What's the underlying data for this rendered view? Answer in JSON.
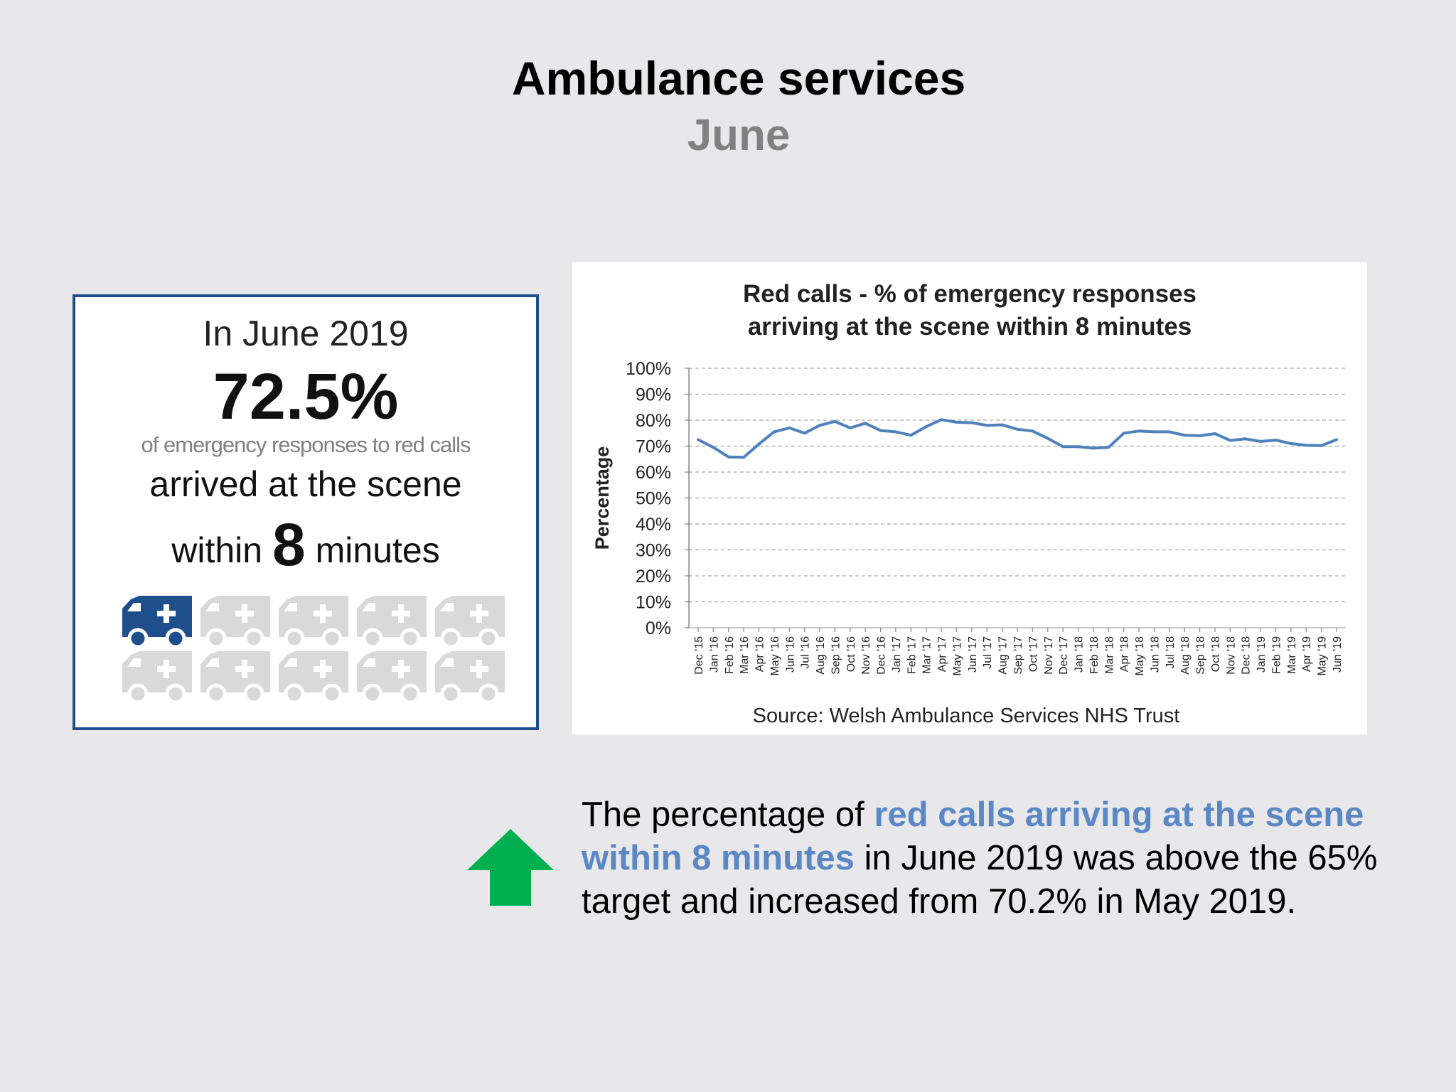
{
  "page": {
    "title": "Ambulance services",
    "subtitle": "June"
  },
  "info_box": {
    "line1": "In June 2019",
    "big_value": "72.5%",
    "small_text": "of emergency responses to red calls",
    "line2": "arrived at the scene",
    "line3_pre": "within",
    "line3_num": "8",
    "line3_post": "minutes",
    "icon_name": "ambulance-icon",
    "icons_total": 10,
    "filled_fraction": 0.725,
    "colors": {
      "filled": "#1f4e8c",
      "empty": "#d9d9d9",
      "border": "#1f4e8c"
    }
  },
  "chart_data": {
    "type": "line",
    "title_lines": [
      "Red calls - % of emergency responses",
      "arriving at the scene within 8 minutes"
    ],
    "ylabel": "Percentage",
    "xlabel": "",
    "ylim": [
      0,
      100
    ],
    "yticks": [
      0,
      10,
      20,
      30,
      40,
      50,
      60,
      70,
      80,
      90,
      100
    ],
    "ytick_suffix": "%",
    "grid": "horizontal dashed",
    "source": "Source:  Welsh Ambulance  Services NHS Trust",
    "categories": [
      "Dec '15",
      "Jan '16",
      "Feb '16",
      "Mar '16",
      "Apr '16",
      "May '16",
      "Jun '16",
      "Jul '16",
      "Aug '16",
      "Sep '16",
      "Oct '16",
      "Nov '16",
      "Dec '16",
      "Jan '17",
      "Feb '17",
      "Mar '17",
      "Apr '17",
      "May '17",
      "Jun '17",
      "Jul '17",
      "Aug '17",
      "Sep '17",
      "Oct '17",
      "Nov '17",
      "Dec '17",
      "Jan '18",
      "Feb '18",
      "Mar '18",
      "Apr '18",
      "May '18",
      "Jun '18",
      "Jul '18",
      "Aug '18",
      "Sep '18",
      "Oct '18",
      "Nov '18",
      "Dec '18",
      "Jan '19",
      "Feb '19",
      "Mar '19",
      "Apr '19",
      "May '19",
      "Jun '19"
    ],
    "series": [
      {
        "color": "#4f81bd",
        "values": [
          72.5,
          69.5,
          65.8,
          65.7,
          70.8,
          75.5,
          77.0,
          75.0,
          78.0,
          79.5,
          77.0,
          78.8,
          76.0,
          75.5,
          74.2,
          77.5,
          80.2,
          79.2,
          79.0,
          78.0,
          78.2,
          76.5,
          75.8,
          73.0,
          69.8,
          69.8,
          69.2,
          69.5,
          75.0,
          75.8,
          75.5,
          75.5,
          74.2,
          74.0,
          74.8,
          72.2,
          72.8,
          71.8,
          72.3,
          71.0,
          70.3,
          70.2,
          72.5
        ]
      }
    ]
  },
  "commentary": {
    "pre": "The percentage of ",
    "highlight": "red calls arriving at the scene within 8 minutes",
    "post": " in June 2019 was above the 65% target and increased from 70.2% in May 2019.",
    "arrow_icon": "up-arrow-icon",
    "arrow_color": "#00b050",
    "highlight_color": "#5b87c5"
  }
}
